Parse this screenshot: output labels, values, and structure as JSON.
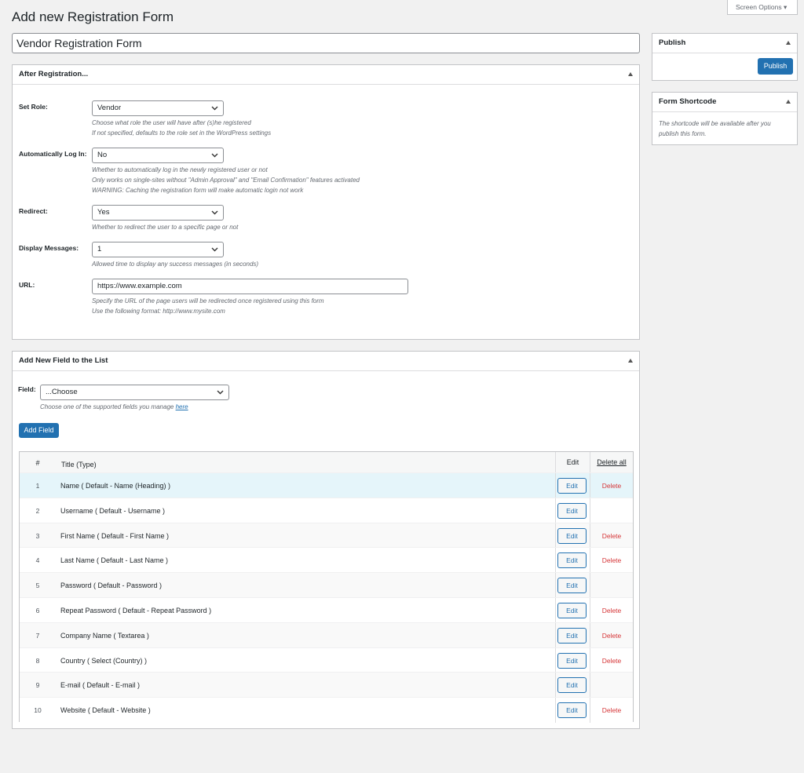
{
  "header": {
    "title": "Add new Registration Form",
    "screen_options": "Screen Options"
  },
  "form_title": "Vendor Registration Form",
  "after_registration": {
    "title": "After Registration...",
    "fields": [
      {
        "label": "Set Role:",
        "value": "Vendor",
        "help": [
          "Choose what role the user will have after (s)he registered",
          "If not specified, defaults to the role set in the WordPress settings"
        ]
      },
      {
        "label": "Automatically Log In:",
        "value": "No",
        "help": [
          "Whether to automatically log in the newly registered user or not",
          "Only works on single-sites without \"Admin Approval\" and \"Email Confirmation\" features activated",
          "WARNING: Caching the registration form will make automatic login not work"
        ]
      },
      {
        "label": "Redirect:",
        "value": "Yes",
        "help": [
          "Whether to redirect the user to a specific page or not"
        ]
      },
      {
        "label": "Display Messages:",
        "value": "1",
        "help": [
          "Allowed time to display any success messages (in seconds)"
        ]
      },
      {
        "label": "URL:",
        "value": "https://www.example.com",
        "help": [
          "Specify the URL of the page users will be redirected once registered using this form",
          "Use the following format: http://www.mysite.com"
        ]
      }
    ]
  },
  "add_field": {
    "title": "Add New Field to the List",
    "label": "Field:",
    "value": "...Choose",
    "help": "Choose one of the supported fields you manage",
    "help_link": "here",
    "button": "Add Field"
  },
  "table": {
    "headers": [
      "#",
      "Title (Type)",
      "Edit",
      "Delete all"
    ],
    "rows": [
      [
        "1",
        "Name ( Default - Name (Heading) )",
        "Edit",
        "Delete"
      ],
      [
        "2",
        "Username ( Default - Username )",
        "Edit"
      ],
      [
        "3",
        "First Name ( Default - First Name )",
        "Edit",
        "Delete"
      ],
      [
        "4",
        "Last Name ( Default - Last Name )",
        "Edit",
        "Delete"
      ],
      [
        "5",
        "Password ( Default - Password )",
        "Edit"
      ],
      [
        "6",
        "Repeat Password ( Default - Repeat Password )",
        "Edit",
        "Delete"
      ],
      [
        "7",
        "Company Name ( Textarea )",
        "Edit",
        "Delete"
      ],
      [
        "8",
        "Country ( Select (Country) )",
        "Edit",
        "Delete"
      ],
      [
        "9",
        "E-mail ( Default - E-mail )",
        "Edit"
      ],
      [
        "10",
        "Website ( Default - Website )",
        "Edit",
        "Delete"
      ]
    ]
  },
  "publish": {
    "title": "Publish",
    "button": "Publish"
  },
  "shortcode": {
    "title": "Form Shortcode",
    "text": "The shortcode will be available after you publish this form."
  }
}
